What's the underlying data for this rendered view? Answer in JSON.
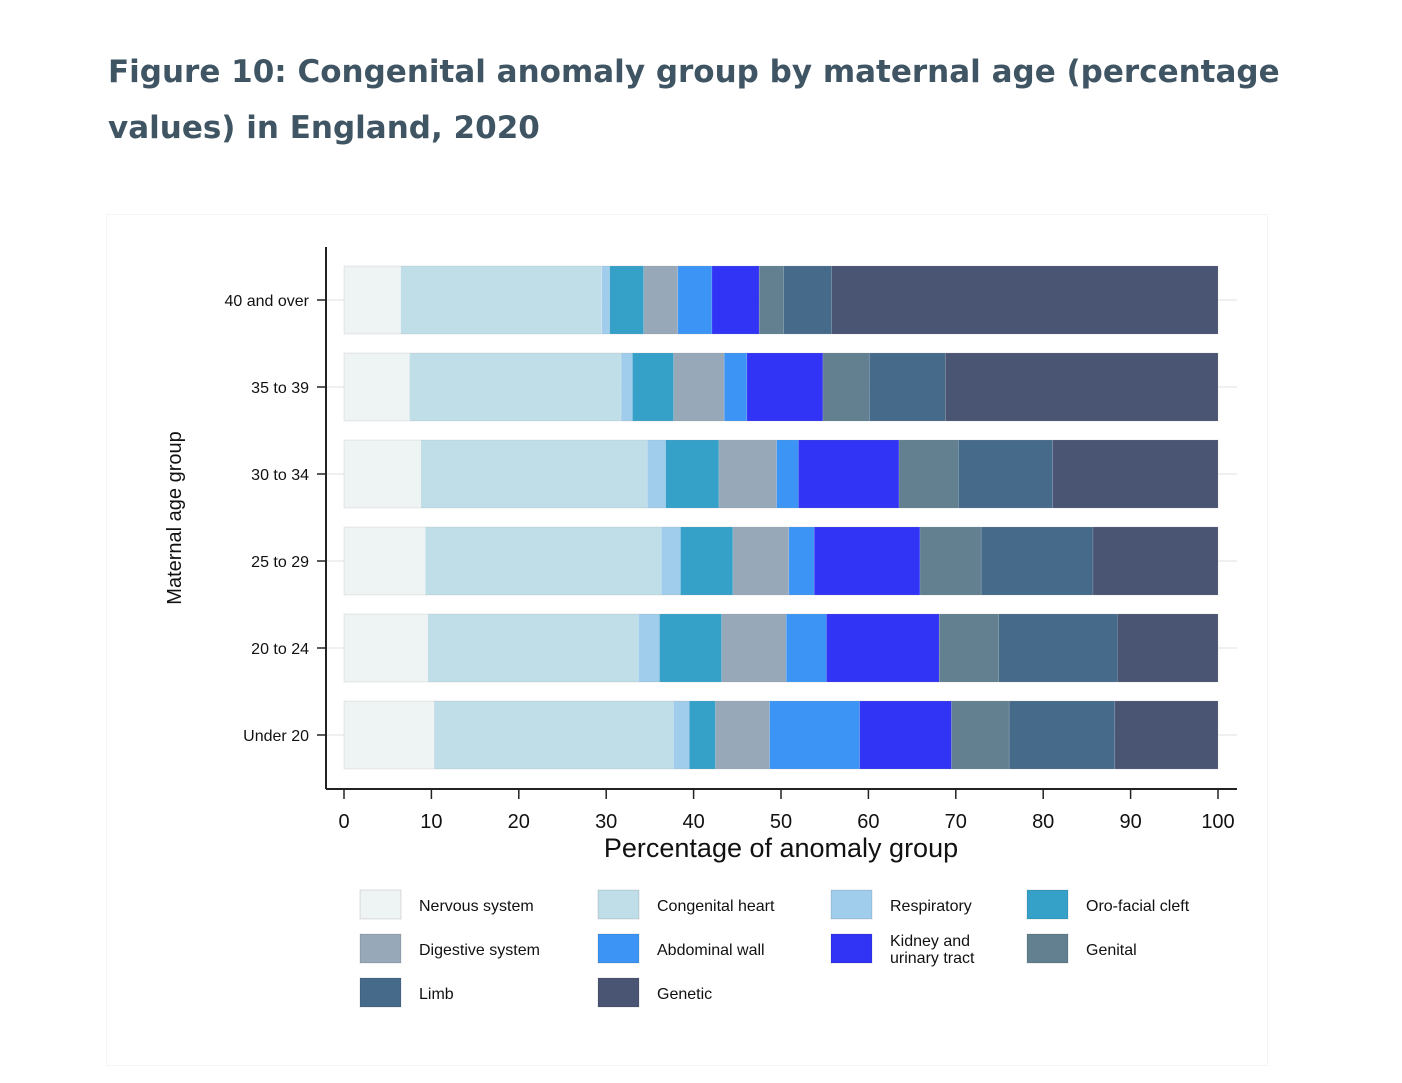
{
  "figure": {
    "title": "Figure 10: Congenital anomaly group by maternal age (percentage values) in England, 2020"
  },
  "chart_data": {
    "type": "bar",
    "orientation": "horizontal",
    "stacked": true,
    "title": "",
    "xlabel": "Percentage of anomaly group",
    "ylabel": "Maternal age group",
    "xlim": [
      0,
      100
    ],
    "xticks": [
      "0",
      "10",
      "20",
      "30",
      "40",
      "50",
      "60",
      "70",
      "80",
      "90",
      "100"
    ],
    "categories": [
      "40 and over",
      "35 to 39",
      "30 to 34",
      "25 to 29",
      "20 to 24",
      "Under 20"
    ],
    "legend_position": "bottom",
    "series": [
      {
        "name": "Nervous system",
        "color": "#eef3f4",
        "values": [
          6.5,
          7.5,
          8.8,
          9.3,
          9.6,
          10.3
        ]
      },
      {
        "name": "Congenital heart",
        "color": "#c0dee8",
        "values": [
          23.0,
          24.2,
          25.9,
          27.0,
          24.1,
          27.4
        ]
      },
      {
        "name": "Respiratory",
        "color": "#a0cdec",
        "values": [
          0.9,
          1.3,
          2.1,
          2.2,
          2.4,
          1.8
        ]
      },
      {
        "name": "Oro-facial cleft",
        "color": "#35a1c9",
        "values": [
          3.9,
          4.7,
          6.1,
          6.0,
          7.1,
          3.0
        ]
      },
      {
        "name": "Digestive system",
        "color": "#97a8b8",
        "values": [
          3.9,
          5.8,
          6.6,
          6.4,
          7.4,
          6.2
        ]
      },
      {
        "name": "Abdominal wall",
        "color": "#3c95f5",
        "values": [
          3.9,
          2.6,
          2.5,
          2.9,
          4.6,
          10.3
        ]
      },
      {
        "name": "Kidney and urinary tract",
        "color": "#3133f5",
        "values": [
          5.4,
          8.7,
          11.5,
          12.1,
          12.9,
          10.5
        ]
      },
      {
        "name": "Genital",
        "color": "#62808f",
        "values": [
          2.8,
          5.3,
          6.8,
          7.0,
          6.8,
          6.6
        ]
      },
      {
        "name": "Limb",
        "color": "#466a8a",
        "values": [
          5.5,
          8.7,
          10.8,
          12.8,
          13.6,
          12.1
        ]
      },
      {
        "name": "Genetic",
        "color": "#4a5573",
        "values": [
          44.2,
          31.2,
          18.9,
          14.3,
          11.5,
          11.8
        ]
      }
    ]
  }
}
